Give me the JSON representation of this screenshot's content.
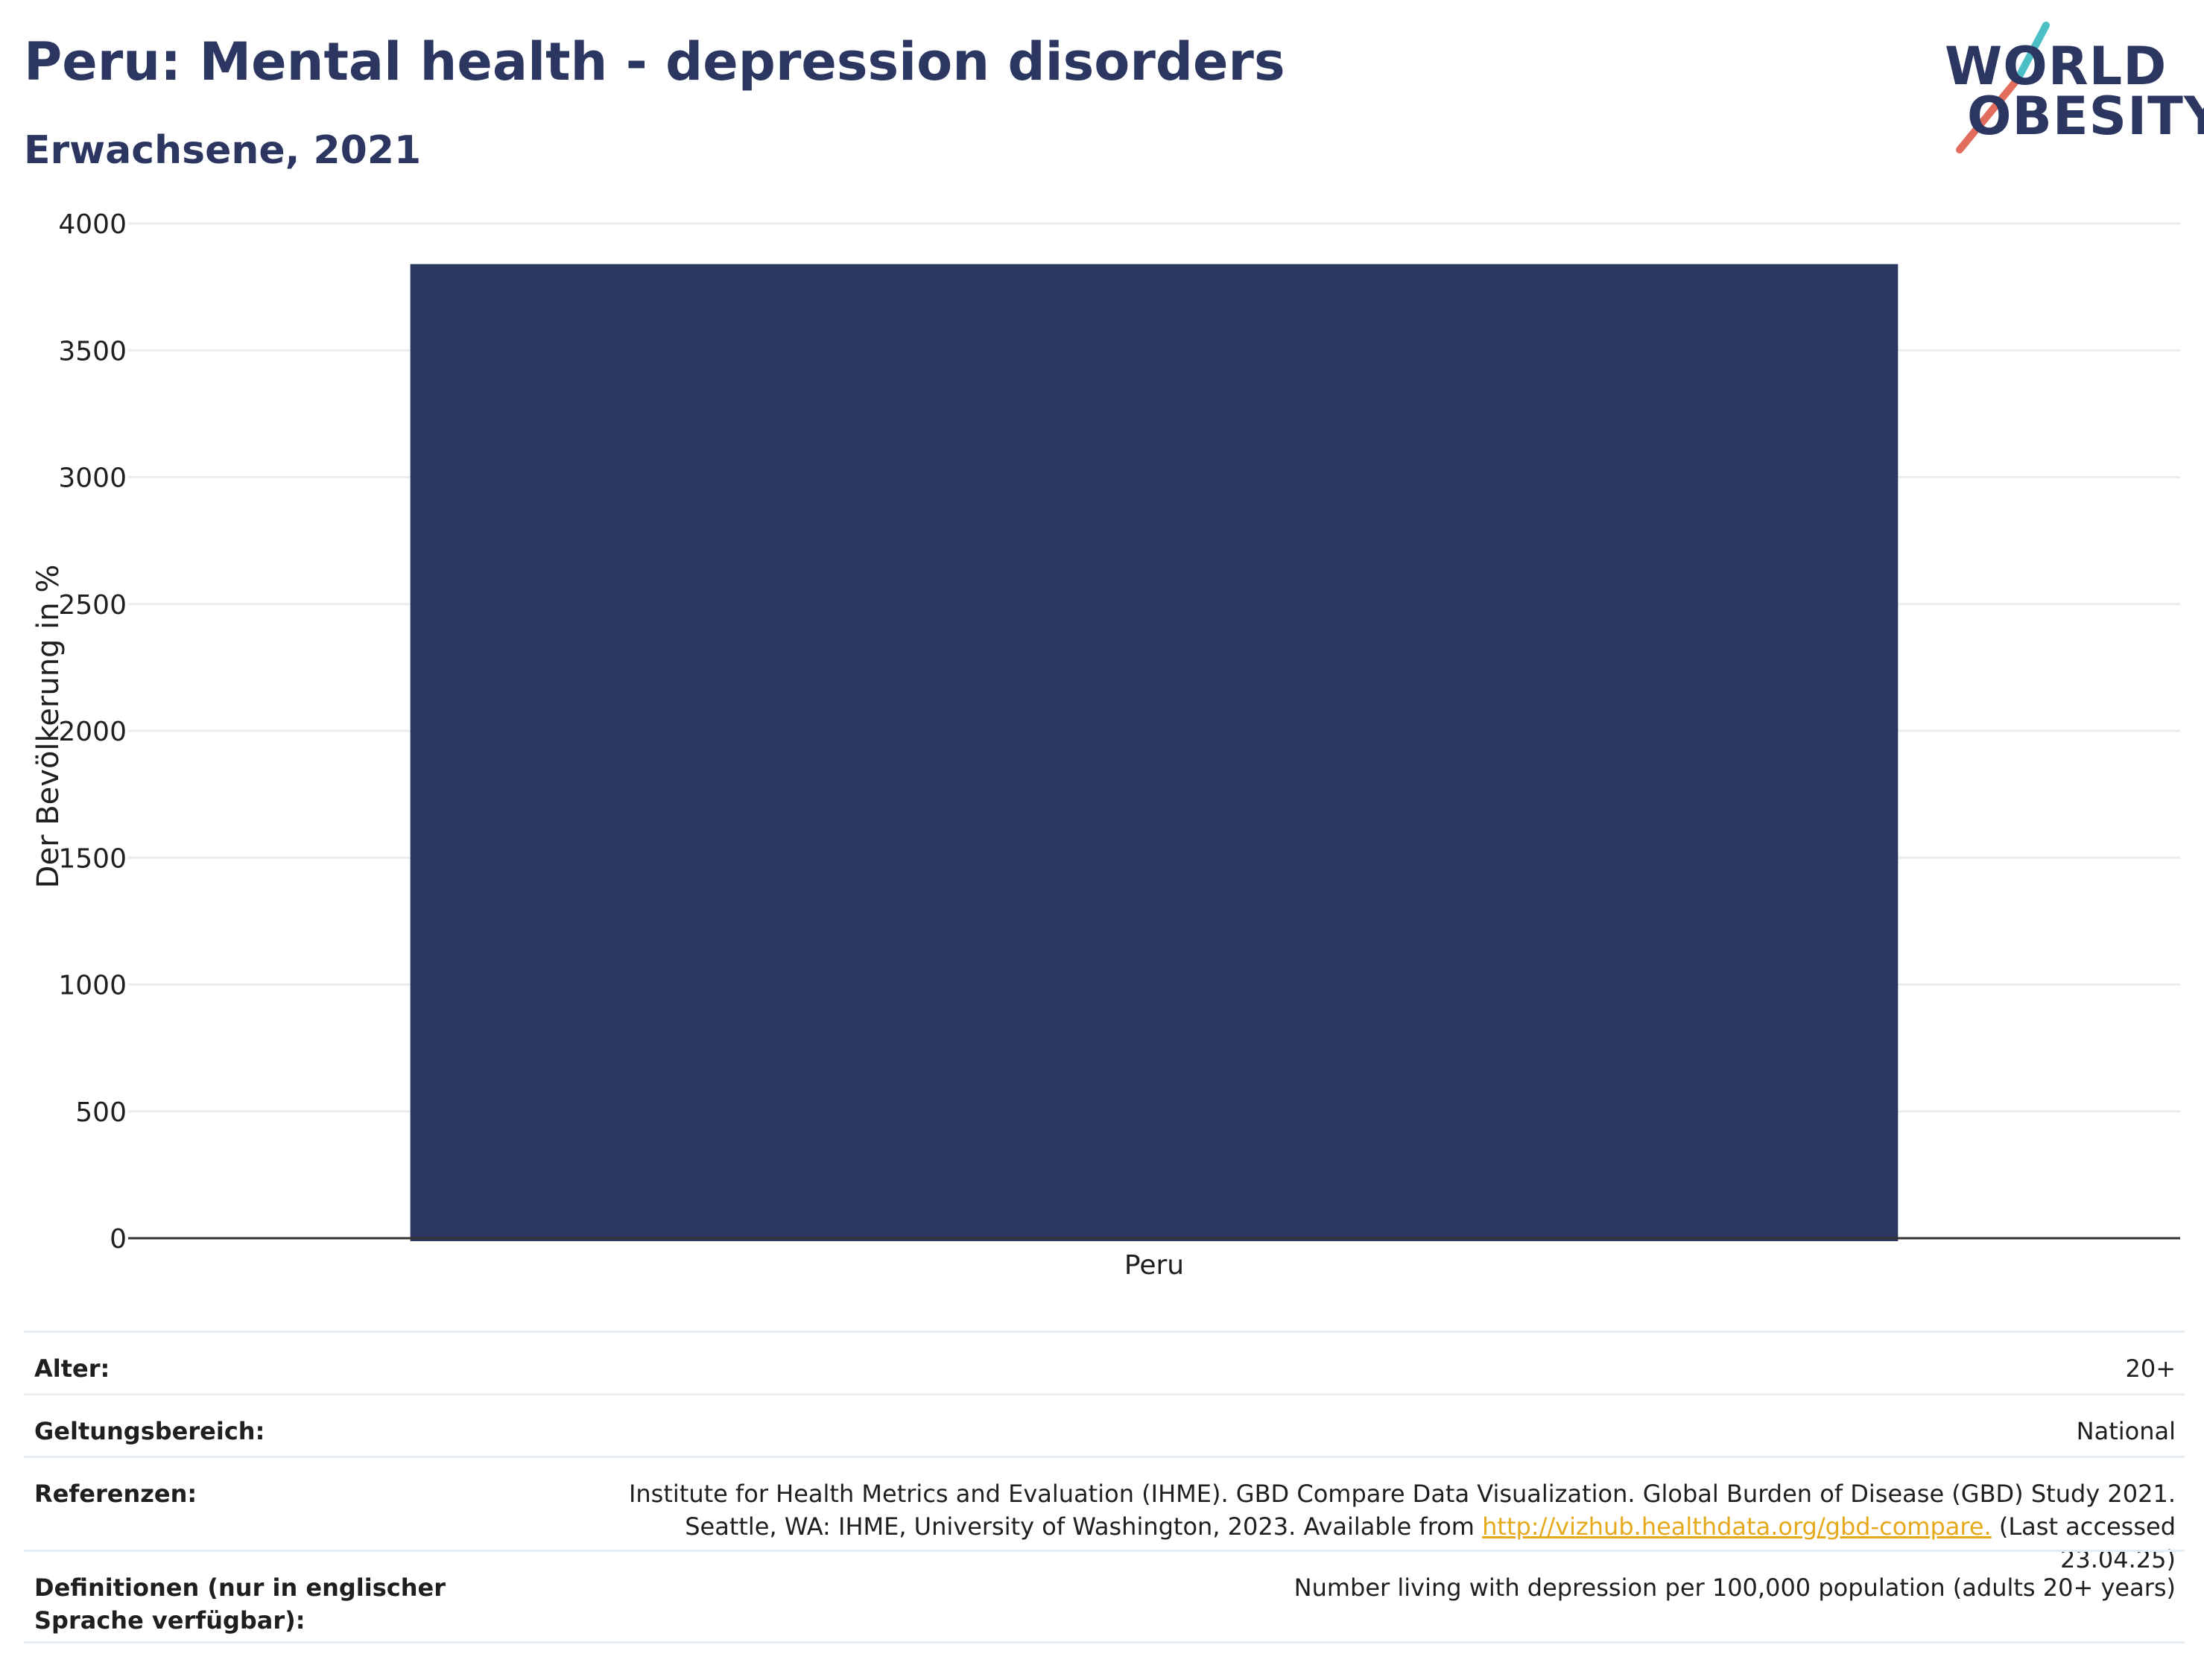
{
  "header": {
    "title": "Peru: Mental health - depression disorders",
    "subtitle": "Erwachsene, 2021"
  },
  "logo": {
    "line1": "WORLD",
    "line2": "OBESITY",
    "accent_colors": [
      "#4bbfc5",
      "#e26d5c"
    ]
  },
  "chart_data": {
    "type": "bar",
    "categories": [
      "Peru"
    ],
    "values": [
      3840
    ],
    "ylabel": "Der Bevölkerung in %",
    "xlabel": "",
    "ylim": [
      0,
      4000
    ],
    "yticks": [
      0,
      500,
      1000,
      1500,
      2000,
      2500,
      3000,
      3500,
      4000
    ],
    "bar_color": "#2b3661",
    "grid": true
  },
  "meta": {
    "rows": [
      {
        "label": "Alter:",
        "value": "20+"
      },
      {
        "label": "Geltungsbereich:",
        "value": "National"
      },
      {
        "label": "Referenzen:",
        "value_line1": "Institute for Health Metrics and Evaluation (IHME). GBD Compare Data Visualization. Global Burden of Disease (GBD) Study 2021.",
        "value_line2_pre": "Seattle, WA: IHME, University of Washington, 2023. Available from ",
        "value_link": "http://vizhub.healthdata.org/gbd-compare.",
        "value_line2_post": " (Last accessed 23.04.25)"
      },
      {
        "label": "Definitionen (nur in englischer Sprache verfügbar):",
        "value": "Number living with depression per 100,000 population (adults 20+ years)"
      }
    ]
  }
}
